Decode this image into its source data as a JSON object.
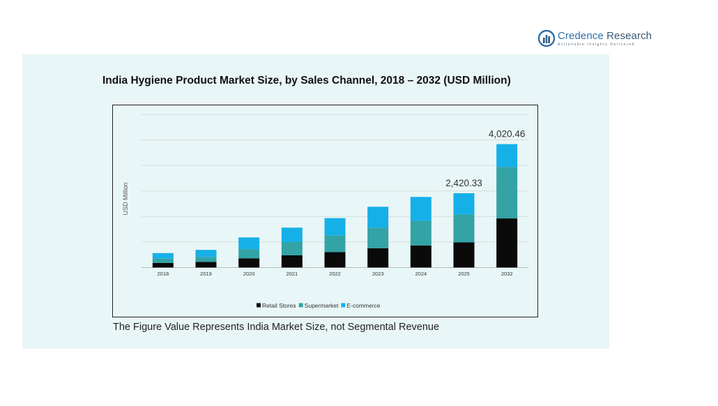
{
  "logo": {
    "name_part1": "Credence",
    "name_part2": " Research",
    "tagline": "Actionable Insights Delivered"
  },
  "footnote": "The Figure Value Represents India Market Size, not Segmental Revenue",
  "colors": {
    "retail": "#0a0a0a",
    "supermarket": "#33a3a6",
    "ecommerce": "#16b0e8",
    "panel": "#e9f6f7"
  },
  "chart_data": {
    "type": "bar",
    "stacked": true,
    "title": "India Hygiene Product Market Size, by Sales Channel, 2018 – 2032 (USD Million)",
    "xlabel": "",
    "ylabel": "USD Million",
    "ylim": [
      0,
      5000
    ],
    "grid": true,
    "legend_position": "bottom-center",
    "categories": [
      "2018",
      "2019",
      "2020",
      "2021",
      "2022",
      "2023",
      "2024",
      "2025",
      "2032"
    ],
    "series": [
      {
        "name": "Retail Stores",
        "values": [
          150,
          185,
          300,
          400,
          500,
          630,
          720,
          820,
          1600
        ]
      },
      {
        "name": "Supermarket",
        "values": [
          140,
          160,
          300,
          430,
          540,
          670,
          800,
          910,
          1680
        ]
      },
      {
        "name": "E-commerce",
        "values": [
          180,
          230,
          380,
          470,
          570,
          680,
          780,
          690,
          740
        ]
      }
    ],
    "total_labels": [
      {
        "category": "2025",
        "text": "2,420.33"
      },
      {
        "category": "2032",
        "text": "4,020.46"
      }
    ]
  }
}
